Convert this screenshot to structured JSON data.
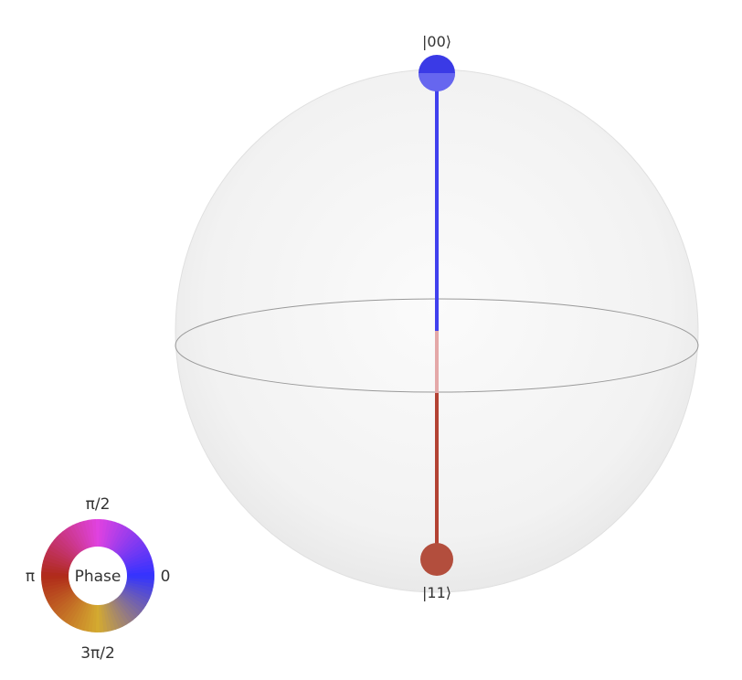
{
  "states": [
    {
      "label": "|00⟩",
      "color": "#3333e6"
    },
    {
      "label": "|11⟩",
      "color": "#b34233"
    }
  ],
  "phase_wheel": {
    "center_label": "Phase",
    "tick_labels": {
      "top": "π/2",
      "left": "π",
      "right": "0",
      "bottom": "3π/2"
    },
    "colors": {
      "zero": "#3333ff",
      "pi_over_2": "#e042e0",
      "pi": "#b02a1a",
      "three_pi_over_2": "#d4aa30"
    }
  },
  "colors": {
    "sphere_fill": "#f4f4f4",
    "sphere_edge": "#dddddd",
    "equator": "#999999"
  }
}
